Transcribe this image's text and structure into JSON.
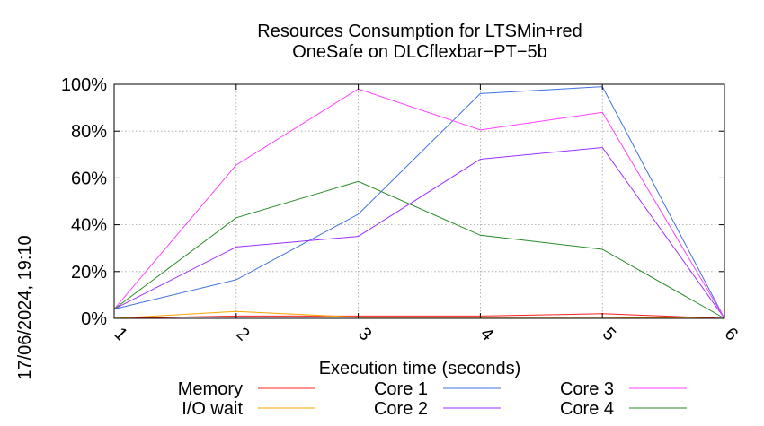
{
  "chart_data": {
    "type": "line",
    "title": "Resources Consumption for LTSMin+red",
    "subtitle": "OneSafe on DLCflexbar−PT−5b",
    "xlabel": "Execution time (seconds)",
    "side_label": "17/06/2024, 19:10",
    "x": [
      1,
      2,
      3,
      4,
      5,
      6
    ],
    "x_tick_labels": [
      "1",
      "2",
      "3",
      "4",
      "5",
      "6"
    ],
    "xlim": [
      1,
      6
    ],
    "ylim": [
      0,
      100
    ],
    "y_tick_values": [
      0,
      20,
      40,
      60,
      80,
      100
    ],
    "y_tick_labels": [
      "0%",
      "20%",
      "40%",
      "60%",
      "80%",
      "100%"
    ],
    "grid": true,
    "legend_position": "bottom",
    "series": [
      {
        "name": "Memory",
        "color": "#ff2020",
        "values": [
          0,
          1,
          1,
          1,
          2,
          0
        ]
      },
      {
        "name": "I/O wait",
        "color": "#ffa500",
        "values": [
          0,
          3,
          0.5,
          0.5,
          0.5,
          0
        ]
      },
      {
        "name": "Core 1",
        "color": "#4070e0",
        "values": [
          4,
          16.5,
          44.5,
          96,
          99,
          0
        ]
      },
      {
        "name": "Core 2",
        "color": "#9b30ff",
        "values": [
          4,
          30.5,
          35,
          68,
          73,
          0
        ]
      },
      {
        "name": "Core 3",
        "color": "#ff40ff",
        "values": [
          4,
          65.5,
          98,
          80.5,
          88,
          0
        ]
      },
      {
        "name": "Core 4",
        "color": "#2a8a2a",
        "values": [
          4,
          43,
          58.5,
          35.5,
          29.5,
          0
        ]
      }
    ]
  }
}
